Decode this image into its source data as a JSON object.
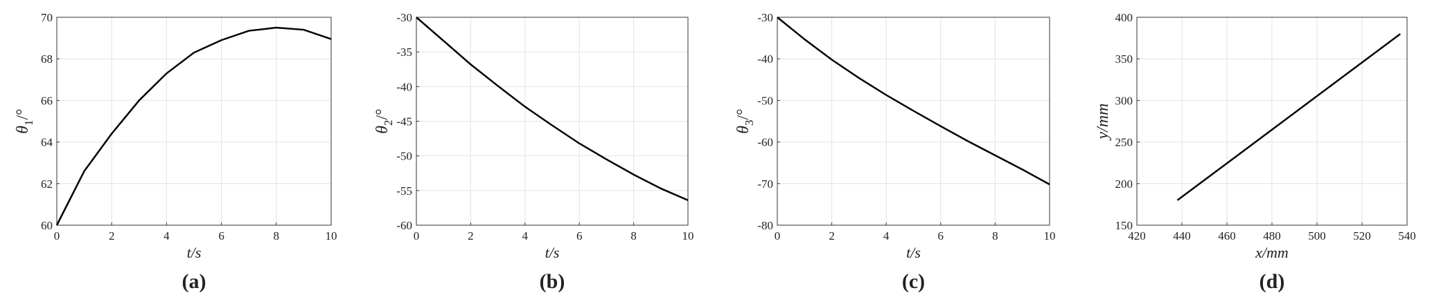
{
  "chart_data": [
    {
      "type": "line",
      "caption": "(a)",
      "xlabel": "t/s",
      "ylabel": "θ",
      "ylabel_sub": "1",
      "ylabel_unit": "/°",
      "x": [
        0,
        1,
        2,
        3,
        4,
        5,
        6,
        7,
        8,
        9,
        10
      ],
      "values": [
        60,
        62.6,
        64.4,
        66.0,
        67.3,
        68.3,
        68.9,
        69.35,
        69.5,
        69.4,
        68.95
      ],
      "color": "#000000",
      "xlim": [
        0,
        10
      ],
      "ylim": [
        60,
        70
      ],
      "xticks": [
        0,
        2,
        4,
        6,
        8,
        10
      ],
      "yticks": [
        60,
        62,
        64,
        66,
        68,
        70
      ],
      "grid": true
    },
    {
      "type": "line",
      "caption": "(b)",
      "xlabel": "t/s",
      "ylabel": "θ",
      "ylabel_sub": "2",
      "ylabel_unit": "/°",
      "x": [
        0,
        1,
        2,
        3,
        4,
        5,
        6,
        7,
        8,
        9,
        10
      ],
      "values": [
        -30,
        -33.4,
        -36.8,
        -39.9,
        -42.9,
        -45.6,
        -48.2,
        -50.5,
        -52.7,
        -54.7,
        -56.4
      ],
      "color": "#000000",
      "xlim": [
        0,
        10
      ],
      "ylim": [
        -60,
        -30
      ],
      "xticks": [
        0,
        2,
        4,
        6,
        8,
        10
      ],
      "yticks": [
        -60,
        -55,
        -50,
        -45,
        -40,
        -35,
        -30
      ],
      "grid": true
    },
    {
      "type": "line",
      "caption": "(c)",
      "xlabel": "t/s",
      "ylabel": "θ",
      "ylabel_sub": "3",
      "ylabel_unit": "/°",
      "x": [
        0,
        1,
        2,
        3,
        4,
        5,
        6,
        7,
        8,
        9,
        10
      ],
      "values": [
        -30,
        -35.3,
        -40.2,
        -44.6,
        -48.7,
        -52.5,
        -56.2,
        -59.8,
        -63.2,
        -66.6,
        -70.2
      ],
      "color": "#000000",
      "xlim": [
        0,
        10
      ],
      "ylim": [
        -80,
        -30
      ],
      "xticks": [
        0,
        2,
        4,
        6,
        8,
        10
      ],
      "yticks": [
        -80,
        -70,
        -60,
        -50,
        -40,
        -30
      ],
      "grid": true
    },
    {
      "type": "line",
      "caption": "(d)",
      "xlabel": "x/mm",
      "ylabel": "y/mm",
      "x": [
        438,
        537
      ],
      "values": [
        180,
        380
      ],
      "color": "#000000",
      "xlim": [
        420,
        540
      ],
      "ylim": [
        150,
        400
      ],
      "xticks": [
        420,
        440,
        460,
        480,
        500,
        520,
        540
      ],
      "yticks": [
        150,
        200,
        250,
        300,
        350,
        400
      ],
      "grid": true
    }
  ]
}
